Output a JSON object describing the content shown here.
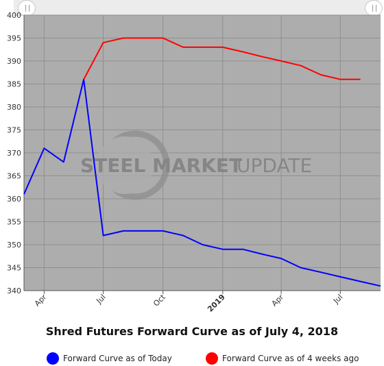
{
  "chart_data": {
    "type": "line",
    "title": "Shred Futures Forward Curve as of July 4, 2018",
    "watermark": {
      "part1": "STEEL MARKET",
      "part2": "UPDATE"
    },
    "ylim": [
      340,
      400
    ],
    "yticks": [
      340,
      345,
      350,
      355,
      360,
      365,
      370,
      375,
      380,
      385,
      390,
      395,
      400
    ],
    "xlim": [
      "2018-03-01",
      "2019-09-01"
    ],
    "xticks": [
      {
        "label": "Apr",
        "date": "2018-04-01",
        "bold": false
      },
      {
        "label": "Jul",
        "date": "2018-07-01",
        "bold": false
      },
      {
        "label": "Oct",
        "date": "2018-10-01",
        "bold": false
      },
      {
        "label": "2019",
        "date": "2019-01-01",
        "bold": true
      },
      {
        "label": "Apr",
        "date": "2019-04-01",
        "bold": false
      },
      {
        "label": "Jul",
        "date": "2019-07-01",
        "bold": false
      }
    ],
    "grid": true,
    "legend_position": "bottom",
    "series": [
      {
        "name": "Forward Curve as of Today",
        "color": "#0000ff",
        "x": [
          "2018-03-01",
          "2018-04-01",
          "2018-05-01",
          "2018-06-01",
          "2018-07-01",
          "2018-08-01",
          "2018-09-01",
          "2018-10-01",
          "2018-11-01",
          "2018-12-01",
          "2019-01-01",
          "2019-02-01",
          "2019-03-01",
          "2019-04-01",
          "2019-05-01",
          "2019-06-01",
          "2019-07-01",
          "2019-08-01",
          "2019-09-01"
        ],
        "values": [
          361,
          371,
          368,
          386,
          352,
          353,
          353,
          353,
          352,
          350,
          349,
          349,
          348,
          347,
          345,
          344,
          343,
          342,
          341
        ]
      },
      {
        "name": "Forward Curve as of 4 weeks ago",
        "color": "#ff0000",
        "x": [
          "2018-06-01",
          "2018-07-01",
          "2018-08-01",
          "2018-09-01",
          "2018-10-01",
          "2018-11-01",
          "2018-12-01",
          "2019-01-01",
          "2019-02-01",
          "2019-03-01",
          "2019-04-01",
          "2019-05-01",
          "2019-06-01",
          "2019-07-01",
          "2019-08-01"
        ],
        "values": [
          386,
          394,
          395,
          395,
          395,
          393,
          393,
          393,
          392,
          391,
          390,
          389,
          387,
          386,
          386
        ]
      }
    ]
  }
}
